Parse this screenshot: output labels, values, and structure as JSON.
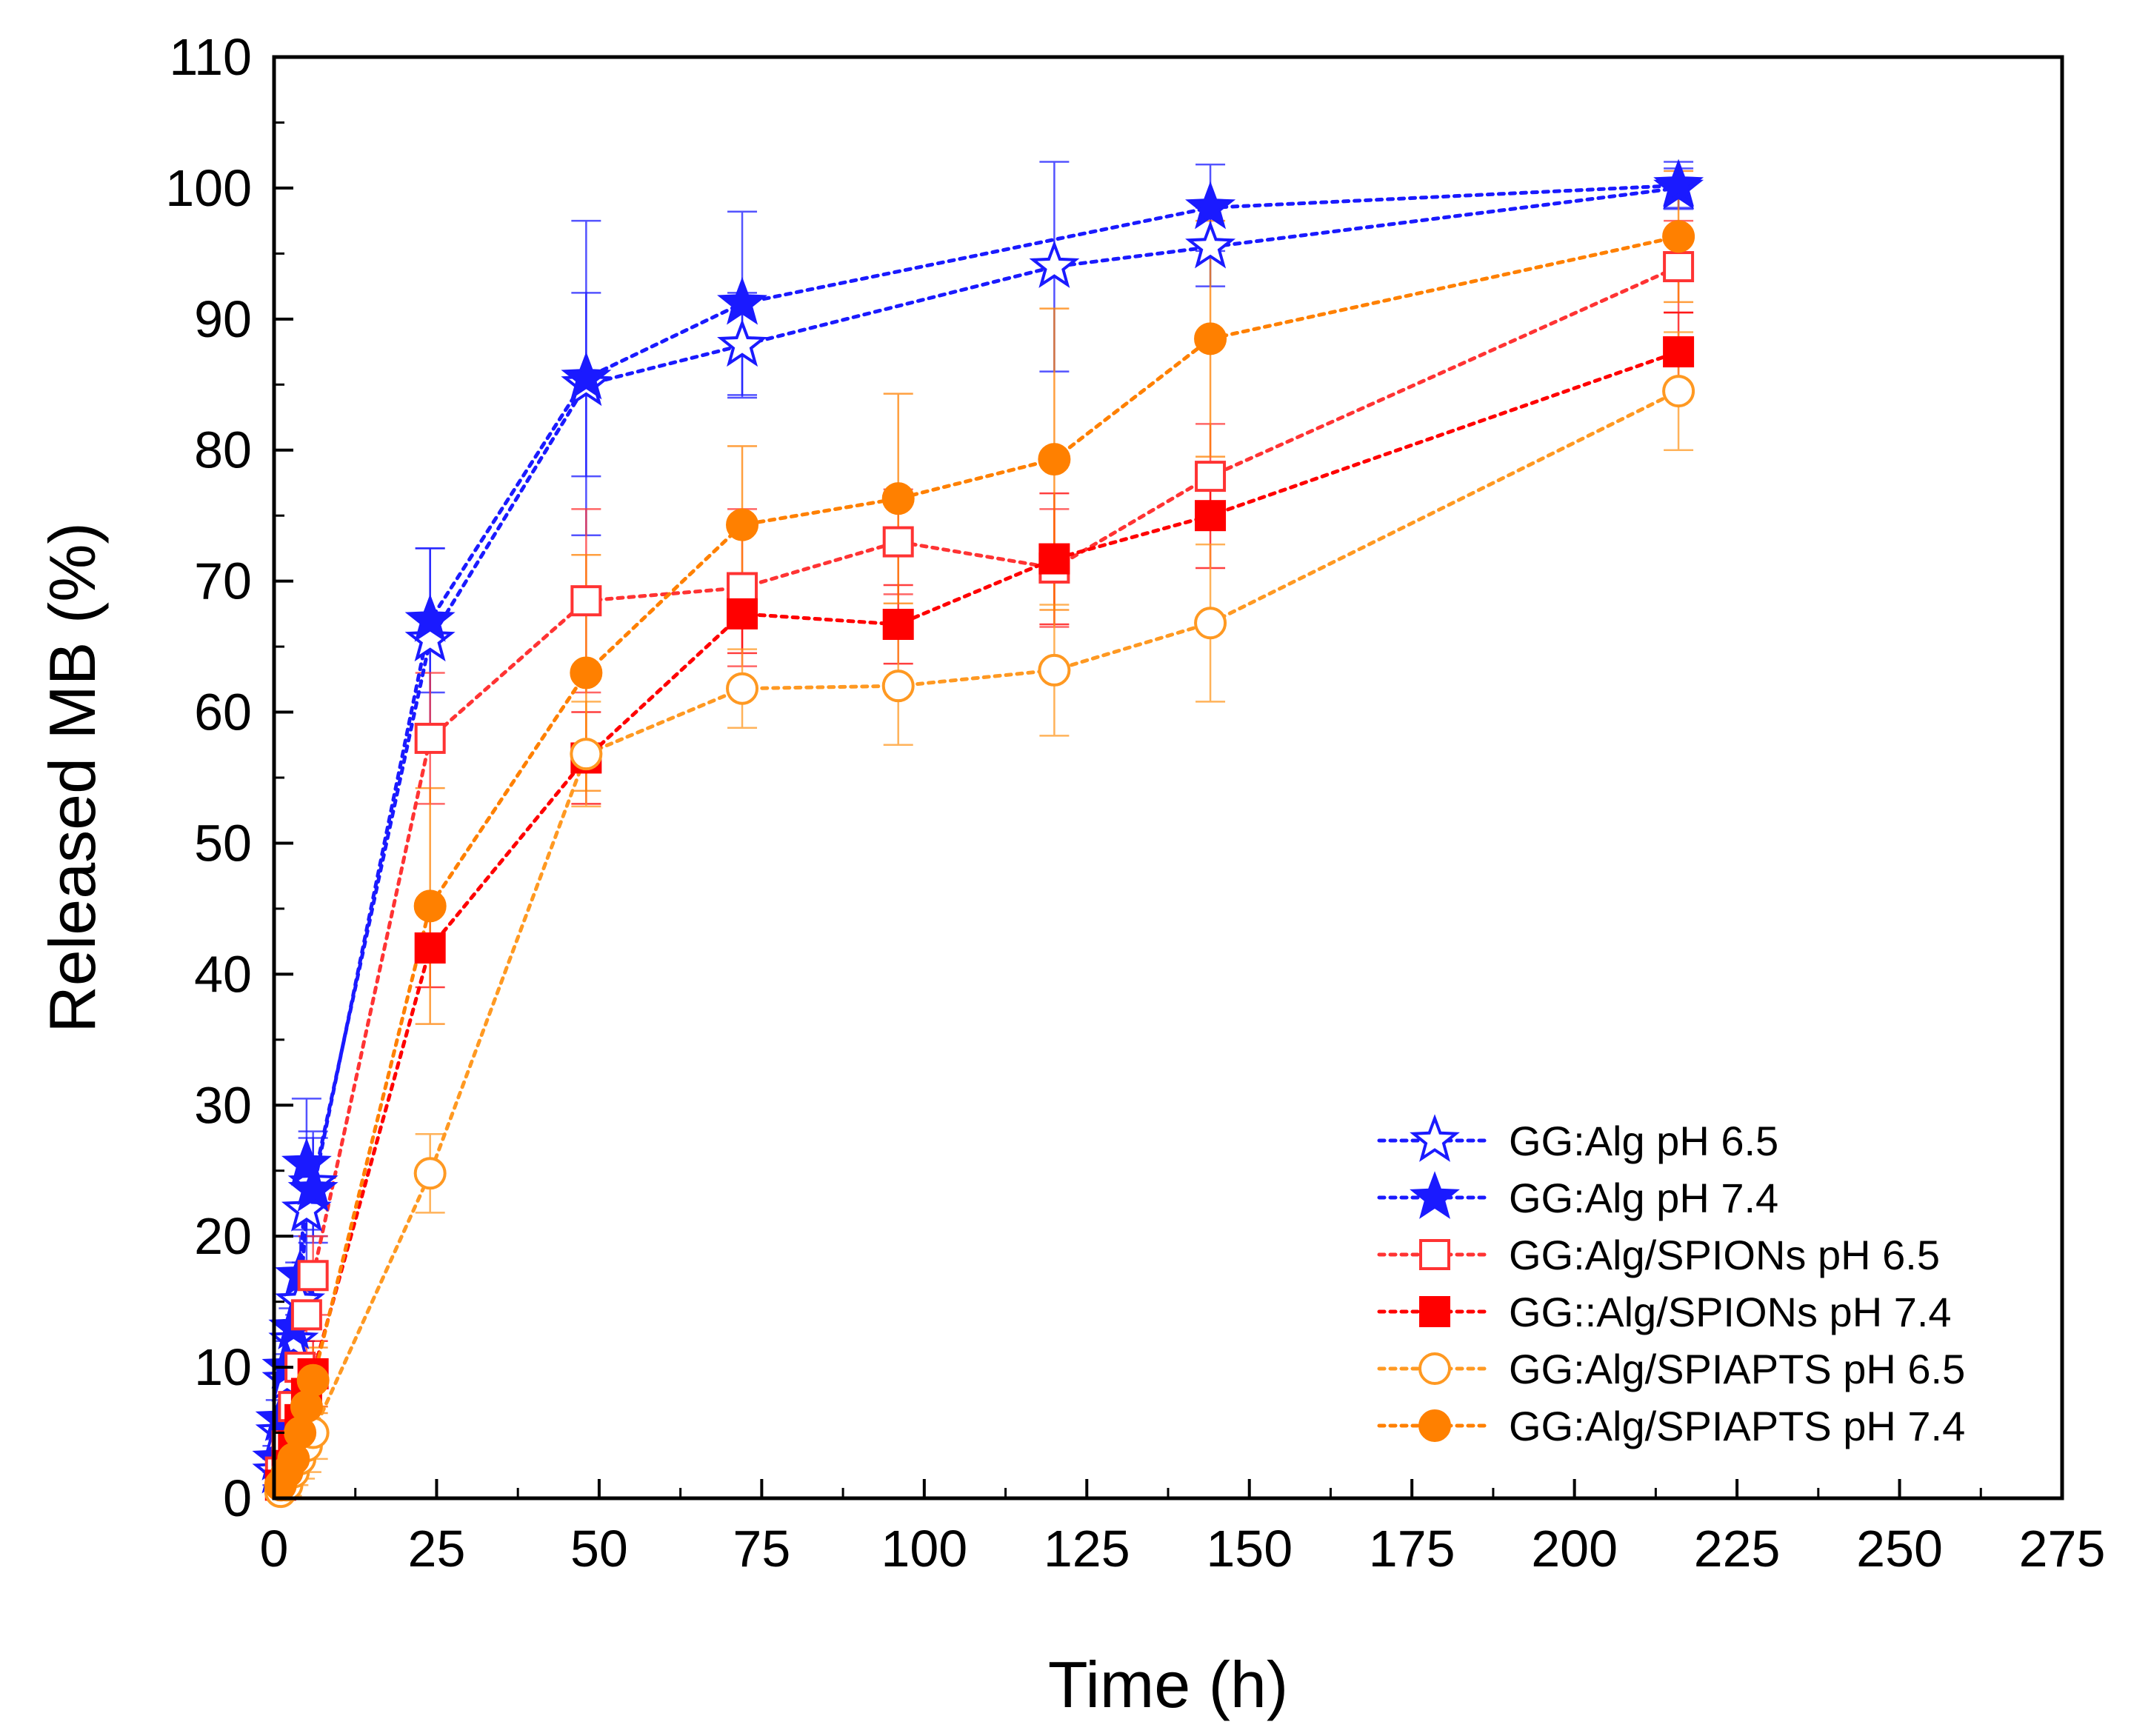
{
  "chart_data": {
    "type": "line",
    "title": "",
    "xlabel": "Time (h)",
    "ylabel": "Released MB (%)",
    "xlim": [
      0,
      275
    ],
    "ylim": [
      0,
      110
    ],
    "xticks": [
      0,
      25,
      50,
      75,
      100,
      125,
      150,
      175,
      200,
      225,
      250,
      275
    ],
    "yticks": [
      0,
      10,
      20,
      30,
      40,
      50,
      60,
      70,
      80,
      90,
      100,
      110
    ],
    "grid": false,
    "legend_position": "bottom-right",
    "series": [
      {
        "name": "GG:Alg pH 6.5",
        "color": "#1a1aff",
        "marker": "star-open",
        "x": [
          0.5,
          1,
          2,
          3,
          4,
          5,
          6,
          24,
          48,
          72,
          120,
          144,
          216
        ],
        "y": [
          2,
          5,
          9,
          12,
          15,
          22,
          24,
          65.5,
          85,
          88,
          94,
          95.5,
          100
        ],
        "err": [
          1,
          1.5,
          2,
          2.5,
          3,
          4,
          4,
          7,
          7,
          4,
          8,
          3,
          1.5
        ]
      },
      {
        "name": "GG:Alg pH 7.4",
        "color": "#1a1aff",
        "marker": "star-filled",
        "x": [
          0.5,
          1,
          2,
          3,
          4,
          5,
          6,
          24,
          48,
          72,
          144,
          216
        ],
        "y": [
          3,
          6,
          10,
          13,
          17,
          25.5,
          23.5,
          67,
          85.5,
          91.2,
          98.5,
          100.2
        ],
        "err": [
          1,
          1.5,
          2,
          2.5,
          3,
          5,
          4,
          5.5,
          12,
          7,
          3.3,
          1.8
        ]
      },
      {
        "name": "GG:Alg/SPIONs pH 6.5",
        "color": "#ff3333",
        "marker": "square-open",
        "x": [
          1,
          2,
          3,
          4,
          5,
          6,
          24,
          48,
          72,
          96,
          120,
          144,
          216
        ],
        "y": [
          2,
          4,
          7,
          10,
          14,
          17,
          58,
          68.5,
          69.5,
          73,
          71,
          78,
          94
        ],
        "err": [
          1,
          1.5,
          2,
          2.5,
          3,
          3,
          5,
          7,
          6,
          4,
          4.5,
          4,
          3.5
        ]
      },
      {
        "name": "GG::Alg/SPIONs pH 7.4",
        "color": "#ff0000",
        "marker": "square-filled",
        "x": [
          1,
          2,
          3,
          4,
          5,
          6,
          24,
          48,
          72,
          96,
          120,
          144,
          216
        ],
        "y": [
          1,
          2.5,
          4,
          6,
          8,
          9.5,
          42,
          56.5,
          67.5,
          66.7,
          71.7,
          75,
          87.5
        ],
        "err": [
          0.8,
          1,
          1.5,
          2,
          2.5,
          2.5,
          3,
          3.5,
          3,
          3,
          5,
          4,
          3
        ]
      },
      {
        "name": "GG:Alg/SPIAPTS pH 6.5",
        "color": "#ff9922",
        "marker": "circle-open",
        "x": [
          1,
          2,
          3,
          4,
          5,
          6,
          24,
          48,
          72,
          96,
          120,
          144,
          216
        ],
        "y": [
          0.5,
          1,
          2,
          3,
          4,
          5,
          24.8,
          56.8,
          61.8,
          62,
          63.2,
          66.8,
          84.5
        ],
        "err": [
          0.5,
          0.8,
          1,
          1.5,
          2,
          2,
          3,
          4,
          3,
          4.5,
          5,
          6,
          4.5
        ]
      },
      {
        "name": "GG:Alg/SPIAPTS pH 7.4",
        "color": "#ff8000",
        "marker": "circle-filled",
        "x": [
          1,
          2,
          3,
          4,
          5,
          6,
          24,
          48,
          72,
          96,
          120,
          144,
          216
        ],
        "y": [
          1,
          2,
          3,
          5,
          7,
          9,
          45.2,
          63,
          74.3,
          76.3,
          79.3,
          88.5,
          96.3
        ],
        "err": [
          0.8,
          1,
          1.5,
          2,
          2,
          2.5,
          9,
          9,
          6,
          8,
          11.5,
          9,
          5
        ]
      }
    ]
  }
}
